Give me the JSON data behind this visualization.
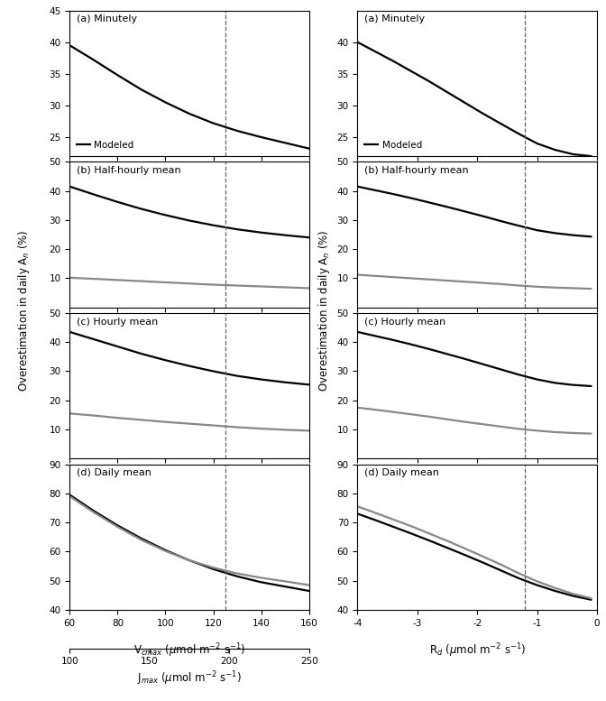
{
  "left": {
    "x_vcmax": [
      60,
      70,
      80,
      90,
      100,
      110,
      120,
      130,
      140,
      150,
      160
    ],
    "dashed_x": 125,
    "subplots": [
      {
        "label": "(a) Minutely",
        "ylim": [
          22,
          45
        ],
        "yticks": [
          25,
          30,
          35,
          40,
          45
        ],
        "modeled": [
          39.5,
          37.2,
          34.8,
          32.5,
          30.5,
          28.7,
          27.2,
          26.0,
          25.0,
          24.1,
          23.2
        ],
        "measured": null,
        "show_legend": true
      },
      {
        "label": "(b) Half-hourly mean",
        "ylim": [
          0,
          50
        ],
        "yticks": [
          10,
          20,
          30,
          40,
          50
        ],
        "modeled": [
          41.5,
          38.8,
          36.2,
          33.8,
          31.7,
          29.8,
          28.2,
          26.8,
          25.7,
          24.8,
          24.0
        ],
        "measured": [
          10.2,
          9.8,
          9.4,
          9.0,
          8.6,
          8.2,
          7.8,
          7.5,
          7.2,
          6.9,
          6.6
        ],
        "show_legend": false
      },
      {
        "label": "(c) Hourly mean",
        "ylim": [
          0,
          50
        ],
        "yticks": [
          10,
          20,
          30,
          40,
          50
        ],
        "modeled": [
          43.5,
          41.0,
          38.5,
          36.0,
          33.8,
          31.8,
          30.0,
          28.4,
          27.2,
          26.2,
          25.4
        ],
        "measured": [
          15.5,
          14.8,
          14.0,
          13.3,
          12.6,
          12.0,
          11.4,
          10.8,
          10.3,
          9.9,
          9.6
        ],
        "show_legend": false
      },
      {
        "label": "(d) Daily mean",
        "ylim": [
          40,
          90
        ],
        "yticks": [
          40,
          50,
          60,
          70,
          80,
          90
        ],
        "modeled": [
          79.5,
          74.0,
          69.0,
          64.5,
          60.5,
          57.0,
          54.0,
          51.5,
          49.5,
          48.0,
          46.5
        ],
        "measured": [
          79.0,
          73.5,
          68.5,
          64.0,
          60.2,
          57.0,
          54.5,
          52.5,
          51.0,
          49.8,
          48.5
        ],
        "show_legend": false
      }
    ],
    "xlabel_top": "V$_{cmax}$ ($\\mu$mol m$^{-2}$ s$^{-1}$)",
    "xlabel_bottom": "J$_{max}$ ($\\mu$mol m$^{-2}$ s$^{-1}$)",
    "ylabel": "Overestimation in daily A$_n$ (%)",
    "xlim": [
      60,
      160
    ],
    "xticks_vcmax": [
      60,
      80,
      100,
      120,
      140,
      160
    ],
    "xticks_jmax": [
      100,
      150,
      200,
      250
    ]
  },
  "right": {
    "x": [
      -4.0,
      -3.7,
      -3.4,
      -3.1,
      -2.8,
      -2.5,
      -2.2,
      -1.9,
      -1.6,
      -1.3,
      -1.0,
      -0.7,
      -0.4,
      -0.1
    ],
    "dashed_x": -1.2,
    "subplots": [
      {
        "label": "(a) Minutely",
        "ylim": [
          22,
          45
        ],
        "yticks": [
          25,
          30,
          35,
          40
        ],
        "modeled": [
          40.0,
          38.5,
          37.0,
          35.4,
          33.8,
          32.1,
          30.4,
          28.7,
          27.1,
          25.5,
          24.0,
          23.0,
          22.3,
          22.0
        ],
        "measured": null,
        "show_legend": true
      },
      {
        "label": "(b) Half-hourly mean",
        "ylim": [
          0,
          50
        ],
        "yticks": [
          10,
          20,
          30,
          40,
          50
        ],
        "modeled": [
          41.5,
          40.2,
          38.9,
          37.5,
          36.0,
          34.5,
          32.9,
          31.3,
          29.6,
          28.0,
          26.5,
          25.5,
          24.8,
          24.3
        ],
        "measured": [
          11.2,
          10.8,
          10.4,
          10.0,
          9.6,
          9.2,
          8.8,
          8.4,
          8.0,
          7.5,
          7.1,
          6.8,
          6.6,
          6.4
        ],
        "show_legend": false
      },
      {
        "label": "(c) Hourly mean",
        "ylim": [
          0,
          50
        ],
        "yticks": [
          10,
          20,
          30,
          40,
          50
        ],
        "modeled": [
          43.5,
          42.1,
          40.7,
          39.2,
          37.6,
          35.9,
          34.2,
          32.4,
          30.6,
          28.8,
          27.2,
          26.0,
          25.3,
          24.9
        ],
        "measured": [
          17.5,
          16.8,
          16.0,
          15.2,
          14.4,
          13.5,
          12.6,
          11.8,
          11.0,
          10.2,
          9.6,
          9.1,
          8.8,
          8.6
        ],
        "show_legend": false
      },
      {
        "label": "(d) Daily mean",
        "ylim": [
          40,
          90
        ],
        "yticks": [
          40,
          50,
          60,
          70,
          80,
          90
        ],
        "modeled": [
          73.0,
          70.8,
          68.5,
          66.2,
          63.8,
          61.3,
          58.8,
          56.2,
          53.5,
          50.8,
          48.5,
          46.5,
          44.8,
          43.5
        ],
        "measured": [
          75.5,
          73.3,
          71.0,
          68.7,
          66.2,
          63.7,
          61.0,
          58.3,
          55.5,
          52.5,
          49.8,
          47.5,
          45.5,
          44.0
        ],
        "show_legend": false
      }
    ],
    "xlabel": "R$_d$ ($\\mu$mol m$^{-2}$ s$^{-1}$)",
    "ylabel": "Overestimation in daily A$_n$ (%)",
    "xlim": [
      -4.0,
      0.0
    ],
    "xticks": [
      -4,
      -3,
      -2,
      -1,
      0
    ]
  },
  "modeled_color": "#000000",
  "measured_color": "#888888",
  "modeled_lw": 1.6,
  "measured_lw": 1.6
}
